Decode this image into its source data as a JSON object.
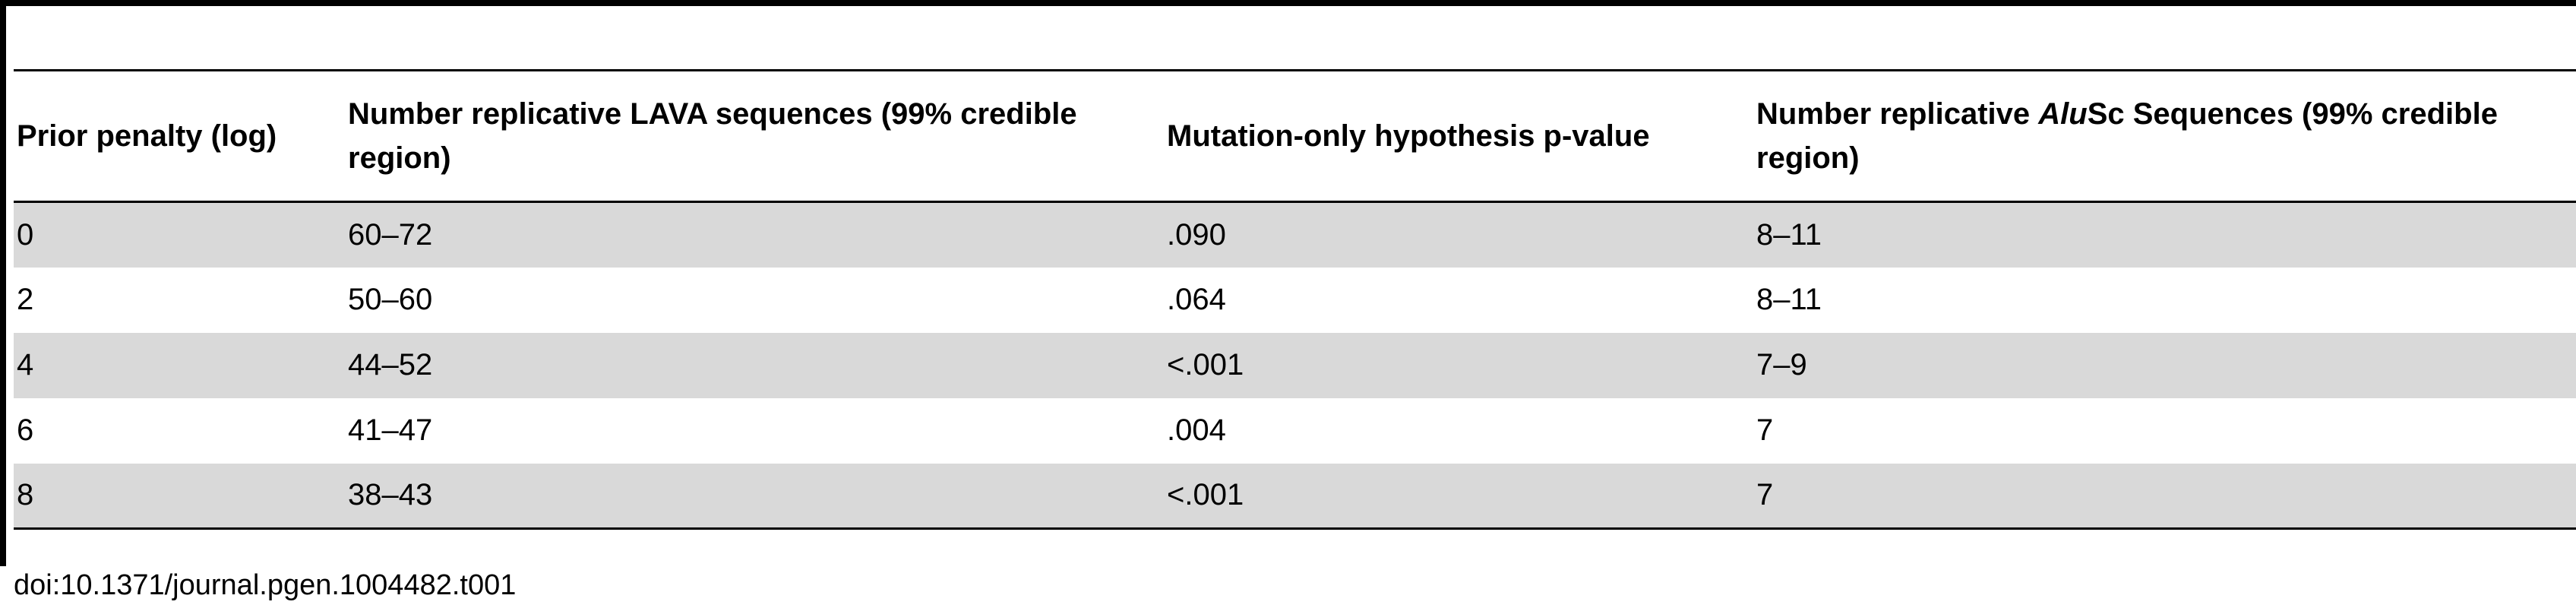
{
  "table": {
    "header": [
      "Prior penalty (log)",
      "Number replicative LAVA sequences (99% credible region)",
      "Mutation-only hypothesis p-value",
      {
        "before": "Number replicative ",
        "italic": "Alu",
        "after": "Sc Sequences (99% credible region)"
      }
    ],
    "rows": [
      [
        "0",
        "60–72",
        ".090",
        "8–11"
      ],
      [
        "2",
        "50–60",
        ".064",
        "8–11"
      ],
      [
        "4",
        "44–52",
        "<.001",
        "7–9"
      ],
      [
        "6",
        "41–47",
        ".004",
        "7"
      ],
      [
        "8",
        "38–43",
        "<.001",
        "7"
      ]
    ]
  },
  "footer": {
    "doi": "doi:10.1371/journal.pgen.1004482.t001"
  }
}
